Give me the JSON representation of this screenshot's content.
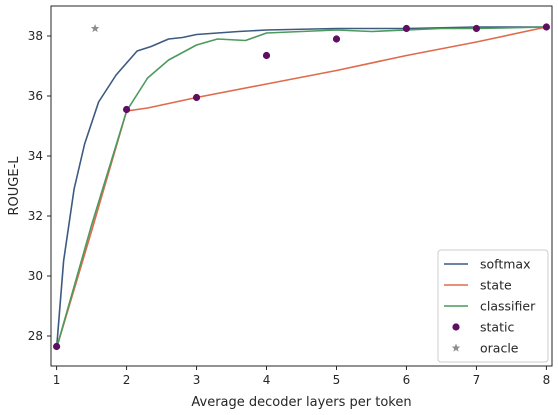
{
  "chart_data": {
    "type": "line",
    "xlabel": "Average decoder layers per token",
    "ylabel": "ROUGE-L",
    "xlim": [
      0.92,
      8.08
    ],
    "ylim": [
      27.0,
      39.0
    ],
    "xticks": [
      1,
      2,
      3,
      4,
      5,
      6,
      7,
      8
    ],
    "yticks": [
      28,
      30,
      32,
      34,
      36,
      38
    ],
    "grid": false,
    "legend_position": "lower-right",
    "series": [
      {
        "name": "softmax",
        "kind": "line",
        "color": "#3d5a80",
        "x": [
          1.0,
          1.1,
          1.25,
          1.4,
          1.6,
          1.85,
          2.0,
          2.15,
          2.35,
          2.6,
          2.8,
          3.0,
          3.3,
          3.6,
          4.0,
          5.0,
          6.0,
          7.0,
          8.0
        ],
        "y": [
          27.6,
          30.5,
          32.9,
          34.4,
          35.8,
          36.7,
          37.1,
          37.5,
          37.65,
          37.9,
          37.95,
          38.05,
          38.1,
          38.15,
          38.2,
          38.25,
          38.25,
          38.3,
          38.3
        ]
      },
      {
        "name": "state",
        "kind": "line",
        "color": "#e06a4c",
        "x": [
          1.0,
          1.5,
          2.0,
          2.3,
          2.6,
          3.0,
          4.0,
          5.0,
          6.0,
          7.0,
          8.0
        ],
        "y": [
          27.6,
          31.5,
          35.5,
          35.6,
          35.75,
          35.95,
          36.4,
          36.85,
          37.35,
          37.8,
          38.3
        ]
      },
      {
        "name": "classifier",
        "kind": "line",
        "color": "#4c9a5e",
        "x": [
          1.0,
          1.5,
          2.0,
          2.3,
          2.6,
          3.0,
          3.3,
          3.7,
          4.0,
          4.5,
          5.0,
          5.5,
          6.0,
          6.5,
          7.0,
          8.0
        ],
        "y": [
          27.6,
          31.7,
          35.5,
          36.6,
          37.2,
          37.7,
          37.9,
          37.85,
          38.1,
          38.15,
          38.2,
          38.15,
          38.2,
          38.25,
          38.25,
          38.3
        ]
      },
      {
        "name": "static",
        "kind": "scatter",
        "marker": "circle",
        "color": "#5e0f62",
        "x": [
          1,
          2,
          3,
          4,
          5,
          6,
          7,
          8
        ],
        "y": [
          27.65,
          35.55,
          35.95,
          37.35,
          37.9,
          38.25,
          38.25,
          38.3
        ]
      },
      {
        "name": "oracle",
        "kind": "scatter",
        "marker": "star",
        "color": "#8c8c8c",
        "x": [
          1.55
        ],
        "y": [
          38.25
        ]
      }
    ]
  }
}
